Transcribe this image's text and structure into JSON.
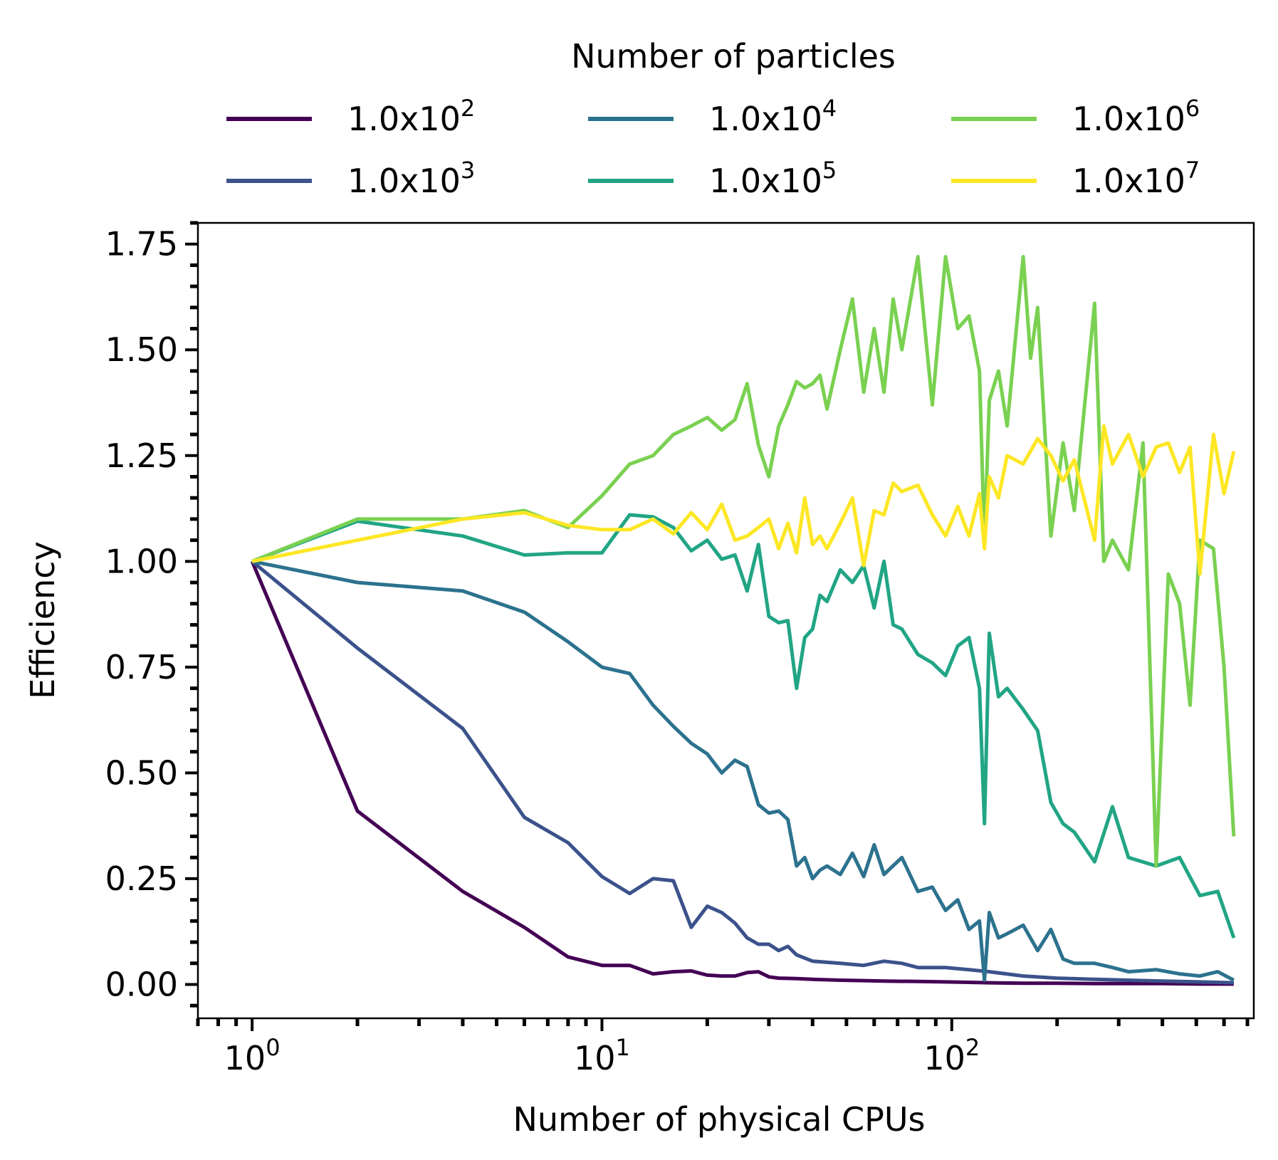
{
  "chart_data": {
    "type": "line",
    "xlabel": "Number of physical CPUs",
    "ylabel": "Efficiency",
    "xscale": "log",
    "xlim": [
      0.7,
      730
    ],
    "ylim": [
      -0.08,
      1.8
    ],
    "grid": false,
    "legend": {
      "title": "Number of particles",
      "placement": "top-outside",
      "columns": 3
    },
    "y_ticks": [
      "0.00",
      "0.25",
      "0.50",
      "0.75",
      "1.00",
      "1.25",
      "1.50",
      "1.75"
    ],
    "x_ticks": [
      {
        "base": "10",
        "exp": "0"
      },
      {
        "base": "10",
        "exp": "1"
      },
      {
        "base": "10",
        "exp": "2"
      }
    ],
    "series": [
      {
        "name": "1.0x10",
        "exp": "2",
        "color": "#440154",
        "x": [
          1,
          2,
          4,
          6,
          8,
          10,
          12,
          14,
          16,
          18,
          20,
          22,
          24,
          26,
          28,
          30,
          32,
          36,
          40,
          48,
          56,
          64,
          80,
          96,
          112,
          128,
          160,
          200,
          256,
          320,
          400,
          512,
          640
        ],
        "y": [
          1.0,
          0.41,
          0.22,
          0.135,
          0.065,
          0.045,
          0.045,
          0.025,
          0.03,
          0.032,
          0.022,
          0.02,
          0.02,
          0.028,
          0.03,
          0.018,
          0.015,
          0.014,
          0.012,
          0.01,
          0.009,
          0.008,
          0.007,
          0.006,
          0.005,
          0.004,
          0.003,
          0.003,
          0.002,
          0.002,
          0.002,
          0.001,
          0.001
        ]
      },
      {
        "name": "1.0x10",
        "exp": "3",
        "color": "#3b528b",
        "x": [
          1,
          2,
          4,
          6,
          8,
          10,
          12,
          14,
          16,
          18,
          20,
          22,
          24,
          26,
          28,
          30,
          32,
          34,
          36,
          40,
          48,
          56,
          64,
          72,
          80,
          96,
          112,
          128,
          160,
          200,
          256,
          320,
          400,
          512,
          640
        ],
        "y": [
          1.0,
          0.795,
          0.605,
          0.395,
          0.335,
          0.255,
          0.215,
          0.25,
          0.245,
          0.135,
          0.185,
          0.17,
          0.145,
          0.11,
          0.095,
          0.095,
          0.08,
          0.09,
          0.07,
          0.055,
          0.05,
          0.045,
          0.055,
          0.05,
          0.04,
          0.04,
          0.035,
          0.03,
          0.02,
          0.015,
          0.012,
          0.01,
          0.008,
          0.006,
          0.004
        ]
      },
      {
        "name": "1.0x10",
        "exp": "4",
        "color": "#2c728e",
        "x": [
          1,
          2,
          4,
          6,
          8,
          10,
          12,
          14,
          16,
          18,
          20,
          22,
          24,
          26,
          28,
          30,
          32,
          34,
          36,
          38,
          40,
          42,
          44,
          48,
          52,
          56,
          60,
          64,
          72,
          80,
          88,
          96,
          104,
          112,
          120,
          124,
          128,
          136,
          144,
          160,
          176,
          192,
          208,
          224,
          256,
          288,
          320,
          384,
          448,
          512,
          576,
          640
        ],
        "y": [
          1.0,
          0.95,
          0.93,
          0.88,
          0.81,
          0.75,
          0.735,
          0.66,
          0.61,
          0.57,
          0.545,
          0.5,
          0.53,
          0.515,
          0.425,
          0.405,
          0.41,
          0.39,
          0.28,
          0.3,
          0.25,
          0.27,
          0.28,
          0.26,
          0.31,
          0.255,
          0.33,
          0.26,
          0.3,
          0.22,
          0.23,
          0.175,
          0.2,
          0.13,
          0.15,
          0.01,
          0.17,
          0.11,
          0.12,
          0.14,
          0.08,
          0.13,
          0.06,
          0.05,
          0.05,
          0.04,
          0.03,
          0.035,
          0.025,
          0.02,
          0.03,
          0.01
        ]
      },
      {
        "name": "1.0x10",
        "exp": "5",
        "color": "#21a585",
        "x": [
          1,
          2,
          4,
          6,
          8,
          10,
          12,
          14,
          16,
          18,
          20,
          22,
          24,
          26,
          28,
          30,
          32,
          34,
          36,
          38,
          40,
          42,
          44,
          48,
          52,
          56,
          60,
          64,
          68,
          72,
          80,
          88,
          96,
          104,
          112,
          120,
          124,
          128,
          136,
          144,
          160,
          176,
          192,
          208,
          224,
          256,
          288,
          320,
          384,
          448,
          512,
          576,
          640
        ],
        "y": [
          1.0,
          1.095,
          1.06,
          1.015,
          1.02,
          1.02,
          1.11,
          1.105,
          1.08,
          1.025,
          1.05,
          1.005,
          1.015,
          0.93,
          1.04,
          0.87,
          0.855,
          0.86,
          0.7,
          0.82,
          0.84,
          0.92,
          0.905,
          0.98,
          0.95,
          0.99,
          0.89,
          1.0,
          0.85,
          0.84,
          0.78,
          0.76,
          0.73,
          0.8,
          0.82,
          0.7,
          0.38,
          0.83,
          0.68,
          0.7,
          0.65,
          0.6,
          0.43,
          0.38,
          0.36,
          0.29,
          0.42,
          0.3,
          0.28,
          0.3,
          0.21,
          0.22,
          0.11
        ]
      },
      {
        "name": "1.0x10",
        "exp": "6",
        "color": "#7ad151",
        "x": [
          1,
          2,
          4,
          6,
          8,
          10,
          12,
          14,
          16,
          18,
          20,
          22,
          24,
          26,
          28,
          30,
          32,
          34,
          36,
          38,
          40,
          42,
          44,
          48,
          52,
          56,
          60,
          64,
          68,
          72,
          80,
          88,
          96,
          104,
          112,
          120,
          124,
          128,
          136,
          144,
          160,
          168,
          176,
          192,
          208,
          224,
          256,
          272,
          288,
          320,
          352,
          384,
          416,
          448,
          480,
          512,
          560,
          600,
          640
        ],
        "y": [
          1.0,
          1.1,
          1.1,
          1.12,
          1.08,
          1.155,
          1.23,
          1.25,
          1.3,
          1.32,
          1.34,
          1.31,
          1.335,
          1.42,
          1.275,
          1.2,
          1.32,
          1.37,
          1.425,
          1.41,
          1.42,
          1.44,
          1.36,
          1.5,
          1.62,
          1.4,
          1.55,
          1.4,
          1.62,
          1.5,
          1.72,
          1.37,
          1.72,
          1.55,
          1.58,
          1.45,
          1.04,
          1.38,
          1.45,
          1.32,
          1.72,
          1.48,
          1.6,
          1.06,
          1.28,
          1.12,
          1.61,
          1.0,
          1.05,
          0.98,
          1.28,
          0.28,
          0.97,
          0.9,
          0.66,
          1.05,
          1.03,
          0.75,
          0.35
        ]
      },
      {
        "name": "1.0x10",
        "exp": "7",
        "color": "#fde725",
        "x": [
          1,
          2,
          4,
          6,
          8,
          10,
          12,
          14,
          16,
          18,
          20,
          22,
          24,
          26,
          28,
          30,
          32,
          34,
          36,
          38,
          40,
          42,
          44,
          48,
          52,
          56,
          60,
          64,
          68,
          72,
          80,
          88,
          96,
          104,
          112,
          120,
          124,
          128,
          136,
          144,
          160,
          176,
          192,
          208,
          224,
          256,
          272,
          288,
          320,
          352,
          384,
          416,
          448,
          480,
          512,
          560,
          600,
          640
        ],
        "y": [
          1.0,
          1.05,
          1.1,
          1.115,
          1.085,
          1.075,
          1.075,
          1.1,
          1.065,
          1.115,
          1.075,
          1.135,
          1.05,
          1.06,
          1.08,
          1.1,
          1.03,
          1.09,
          1.02,
          1.15,
          1.04,
          1.06,
          1.03,
          1.09,
          1.15,
          0.99,
          1.12,
          1.11,
          1.185,
          1.165,
          1.18,
          1.11,
          1.06,
          1.13,
          1.06,
          1.16,
          1.03,
          1.2,
          1.15,
          1.25,
          1.23,
          1.29,
          1.25,
          1.19,
          1.24,
          1.05,
          1.32,
          1.23,
          1.3,
          1.2,
          1.27,
          1.28,
          1.21,
          1.27,
          0.97,
          1.3,
          1.16,
          1.26
        ]
      }
    ]
  }
}
